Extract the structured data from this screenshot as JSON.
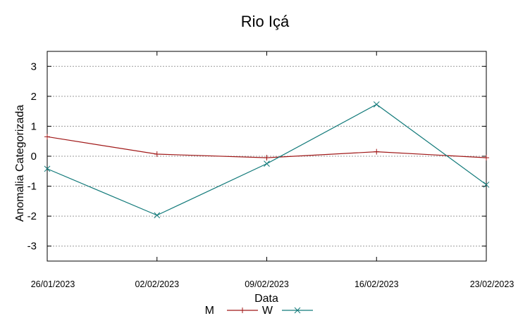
{
  "chart_data": {
    "type": "line",
    "title": "Rio Içá",
    "xlabel": "Data",
    "ylabel": "Anomalia Categorizada",
    "categories": [
      "26/01/2023",
      "02/02/2023",
      "09/02/2023",
      "16/02/2023",
      "23/02/2023"
    ],
    "ylim": [
      -3.5,
      3.5
    ],
    "yticks": [
      "3",
      "2",
      "1",
      "0",
      "-1",
      "-2",
      "-3"
    ],
    "grid": true,
    "legend_position": "bottom-center",
    "series": [
      {
        "name": "M",
        "color": "#a01818",
        "marker": "plus",
        "values": [
          0.65,
          0.07,
          -0.05,
          0.15,
          -0.05
        ]
      },
      {
        "name": "W",
        "color": "#127a7a",
        "marker": "x",
        "values": [
          -0.42,
          -1.97,
          -0.25,
          1.73,
          -0.95
        ]
      }
    ]
  }
}
